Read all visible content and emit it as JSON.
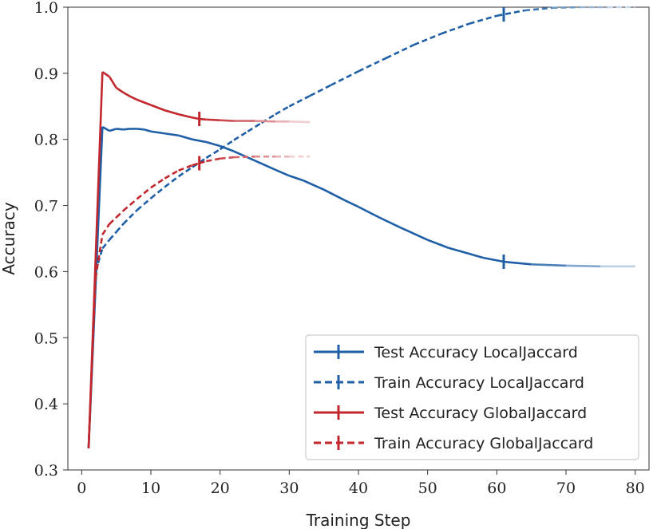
{
  "chart_data": {
    "type": "line",
    "title": "",
    "xlabel": "Training Step",
    "ylabel": "Accuracy",
    "xlim": [
      -2,
      82
    ],
    "ylim": [
      0.3,
      1.0
    ],
    "xticks": [
      0,
      10,
      20,
      30,
      40,
      50,
      60,
      70,
      80
    ],
    "yticks": [
      0.3,
      0.4,
      0.5,
      0.6,
      0.7,
      0.8,
      0.9,
      1.0
    ],
    "grid": false,
    "legend_position": "bottom-right",
    "series": [
      {
        "name": "Test Accuracy LocalJaccard",
        "color": "#1f5fa6",
        "dash": "solid",
        "marker_x": 61,
        "x": [
          1,
          3,
          4,
          5,
          6,
          7,
          8,
          9,
          10,
          12,
          14,
          16,
          18,
          20,
          22,
          25,
          28,
          30,
          32,
          35,
          38,
          40,
          43,
          46,
          50,
          53,
          56,
          58,
          61,
          65,
          70,
          75,
          80
        ],
        "y": [
          0.333,
          0.819,
          0.813,
          0.816,
          0.815,
          0.816,
          0.816,
          0.815,
          0.812,
          0.809,
          0.806,
          0.8,
          0.796,
          0.79,
          0.782,
          0.768,
          0.754,
          0.745,
          0.738,
          0.724,
          0.708,
          0.698,
          0.682,
          0.667,
          0.648,
          0.636,
          0.627,
          0.621,
          0.615,
          0.611,
          0.609,
          0.608,
          0.608
        ]
      },
      {
        "name": "Train Accuracy LocalJaccard",
        "color": "#1f5fa6",
        "dash": "dashed",
        "marker_x": 61,
        "x": [
          1,
          2,
          3,
          4,
          5,
          6,
          8,
          10,
          12,
          14,
          16,
          18,
          20,
          22,
          24,
          26,
          28,
          30,
          33,
          36,
          40,
          44,
          48,
          52,
          56,
          60,
          64,
          68,
          72,
          76,
          80
        ],
        "y": [
          0.333,
          0.6,
          0.635,
          0.648,
          0.66,
          0.672,
          0.693,
          0.711,
          0.728,
          0.744,
          0.758,
          0.772,
          0.785,
          0.799,
          0.812,
          0.825,
          0.838,
          0.85,
          0.866,
          0.882,
          0.903,
          0.923,
          0.943,
          0.96,
          0.975,
          0.987,
          0.995,
          0.999,
          1.0,
          1.0,
          1.0
        ]
      },
      {
        "name": "Test Accuracy GlobalJaccard",
        "color": "#c1272d",
        "dash": "solid",
        "marker_x": 17,
        "x": [
          1,
          3,
          4,
          5,
          6,
          7,
          8,
          10,
          12,
          14,
          16,
          17,
          18,
          20,
          22,
          25,
          28,
          30,
          33
        ],
        "y": [
          0.333,
          0.902,
          0.895,
          0.878,
          0.871,
          0.865,
          0.86,
          0.852,
          0.844,
          0.838,
          0.833,
          0.831,
          0.83,
          0.829,
          0.828,
          0.828,
          0.827,
          0.827,
          0.826
        ]
      },
      {
        "name": "Train Accuracy GlobalJaccard",
        "color": "#c1272d",
        "dash": "dashed",
        "marker_x": 17,
        "x": [
          1,
          2,
          3,
          4,
          5,
          6,
          7,
          8,
          10,
          12,
          14,
          16,
          17,
          18,
          20,
          22,
          25,
          28,
          30,
          33
        ],
        "y": [
          0.333,
          0.59,
          0.656,
          0.672,
          0.682,
          0.692,
          0.701,
          0.71,
          0.727,
          0.741,
          0.753,
          0.761,
          0.764,
          0.767,
          0.771,
          0.773,
          0.774,
          0.774,
          0.774,
          0.774
        ]
      }
    ]
  }
}
